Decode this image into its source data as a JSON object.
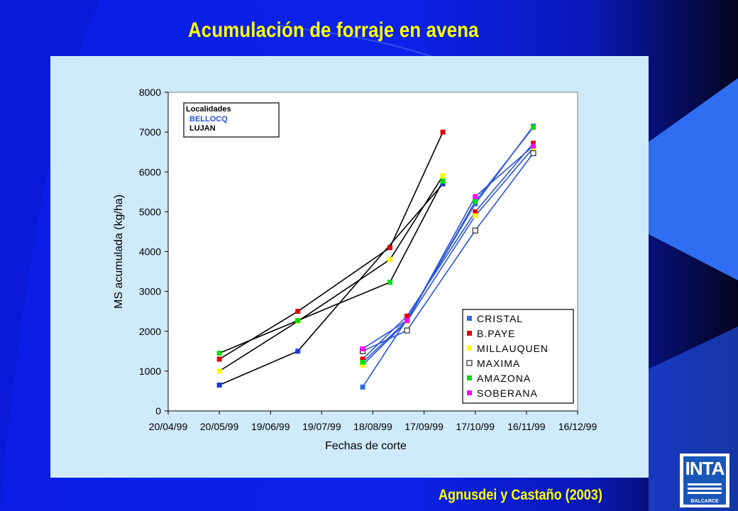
{
  "slide": {
    "title": "Acumulación de forraje  en avena",
    "source": "Agnusdei y Castaño (2003)",
    "logo_text": "INTA",
    "logo_sub": "BALCARCE"
  },
  "colors": {
    "background": "#0a1ee6",
    "title": "#ffff00",
    "panel": "#cfeafb",
    "bellocq_line": "#2a55d8",
    "lujan_line": "#000000"
  },
  "chart_data": {
    "type": "line",
    "xlabel": "Fechas de corte",
    "ylabel": "MS acumulada (kg/ha)",
    "ylim": [
      0,
      8000
    ],
    "yticks": [
      "0",
      "1000",
      "2000",
      "3000",
      "4000",
      "5000",
      "6000",
      "7000",
      "8000"
    ],
    "xlim": [
      "20/04/99",
      "16/12/99"
    ],
    "xticks": [
      "20/04/99",
      "20/05/99",
      "19/06/99",
      "19/07/99",
      "18/08/99",
      "17/09/99",
      "17/10/99",
      "16/11/99",
      "16/12/99"
    ],
    "grid": false,
    "locations_box": {
      "title": "Localidades",
      "entries": [
        {
          "name": "BELLOCQ",
          "color": "#2a55d8"
        },
        {
          "name": "LUJAN",
          "color": "#000000"
        }
      ]
    },
    "legend_position": "bottom-right",
    "legend": [
      {
        "name": "CRISTAL",
        "color": "#2a6ee0",
        "filled": true
      },
      {
        "name": "B.PAYE",
        "color": "#e00000",
        "filled": true
      },
      {
        "name": "MILLAUQUEN",
        "color": "#ffff00",
        "filled": true
      },
      {
        "name": "MAXIMA",
        "color": "#ffffff",
        "filled": false
      },
      {
        "name": "AMAZONA",
        "color": "#00e000",
        "filled": true
      },
      {
        "name": "SOBERANA",
        "color": "#ff00ff",
        "filled": true
      }
    ],
    "series": [
      {
        "name": "CRISTAL",
        "location": "LUJAN",
        "color": "#1a3ad8",
        "x": [
          "20/05/99",
          "05/07/99",
          "28/09/99"
        ],
        "y": [
          650,
          1500,
          5700
        ]
      },
      {
        "name": "B.PAYE",
        "location": "LUJAN",
        "color": "#e00000",
        "x": [
          "20/05/99",
          "05/07/99",
          "28/08/99",
          "28/09/99"
        ],
        "y": [
          1300,
          2500,
          4100,
          7000
        ]
      },
      {
        "name": "MILLAUQUEN",
        "location": "LUJAN",
        "color": "#ffff00",
        "x": [
          "20/05/99",
          "05/07/99",
          "28/08/99",
          "28/09/99"
        ],
        "y": [
          1000,
          2250,
          3800,
          5900
        ]
      },
      {
        "name": "AMAZONA",
        "location": "LUJAN",
        "color": "#00e000",
        "x": [
          "20/05/99",
          "05/07/99",
          "28/08/99",
          "28/09/99"
        ],
        "y": [
          1450,
          2270,
          3230,
          5770
        ]
      },
      {
        "name": "CRISTAL",
        "location": "BELLOCQ",
        "color": "#2a6ee0",
        "x": [
          "12/08/99",
          "07/09/99",
          "17/10/99",
          "20/11/99"
        ],
        "y": [
          600,
          2300,
          5200,
          7150
        ]
      },
      {
        "name": "B.PAYE",
        "location": "BELLOCQ",
        "color": "#e00000",
        "x": [
          "12/08/99",
          "07/09/99",
          "17/10/99",
          "20/11/99"
        ],
        "y": [
          1300,
          2380,
          5000,
          6720
        ]
      },
      {
        "name": "MILLAUQUEN",
        "location": "BELLOCQ",
        "color": "#ffff00",
        "x": [
          "12/08/99",
          "07/09/99",
          "17/10/99",
          "20/11/99"
        ],
        "y": [
          1150,
          2250,
          4900,
          6600
        ]
      },
      {
        "name": "MAXIMA",
        "location": "BELLOCQ",
        "color": "#ffffff",
        "x": [
          "12/08/99",
          "07/09/99",
          "17/10/99",
          "20/11/99"
        ],
        "y": [
          1500,
          2020,
          4530,
          6470
        ]
      },
      {
        "name": "AMAZONA",
        "location": "BELLOCQ",
        "color": "#00e000",
        "x": [
          "12/08/99",
          "07/09/99",
          "17/10/99",
          "20/11/99"
        ],
        "y": [
          1220,
          2270,
          5260,
          7120
        ]
      },
      {
        "name": "SOBERANA",
        "location": "BELLOCQ",
        "color": "#ff00ff",
        "x": [
          "12/08/99",
          "07/09/99",
          "17/10/99",
          "20/11/99"
        ],
        "y": [
          1560,
          2270,
          5380,
          6650
        ]
      }
    ]
  }
}
